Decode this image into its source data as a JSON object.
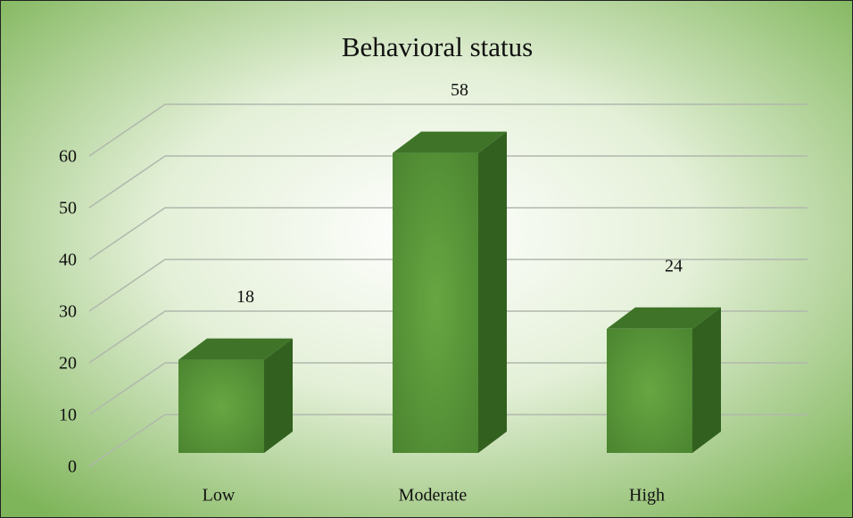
{
  "chart_data": {
    "type": "bar3d",
    "title": "Behavioral status",
    "categories": [
      "Low",
      "Moderate",
      "High"
    ],
    "values": [
      18,
      58,
      24
    ],
    "color": "#5b9b3b",
    "ylim": [
      0,
      60
    ],
    "yticks": [
      0,
      10,
      20,
      30,
      40,
      50,
      60
    ],
    "grid": true
  }
}
